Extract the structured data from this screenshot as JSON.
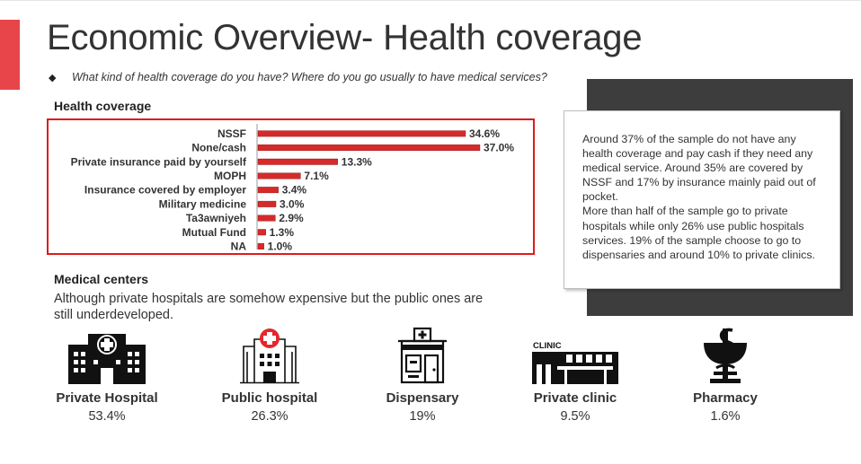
{
  "header": {
    "title": "Economic Overview- Health coverage",
    "bullet": "◆",
    "question": "What kind of health coverage do you have? Where do you go usually to have medical services?"
  },
  "health_coverage": {
    "heading": "Health coverage"
  },
  "chart_data": {
    "type": "bar",
    "orientation": "horizontal",
    "categories": [
      "NSSF",
      "None/cash",
      "Private insurance paid by yourself",
      "MOPH",
      "Insurance covered by employer",
      "Military medicine",
      "Ta3awniyeh",
      "Mutual Fund",
      "NA"
    ],
    "values": [
      34.6,
      37.0,
      13.3,
      7.1,
      3.4,
      3.0,
      2.9,
      1.3,
      1.0
    ],
    "value_labels": [
      "34.6%",
      "37.0%",
      "13.3%",
      "7.1%",
      "3.4%",
      "3.0%",
      "2.9%",
      "1.3%",
      "1.0%"
    ],
    "unit": "%",
    "bar_color": "#d62a2a",
    "border_color": "#e11b1b",
    "grid": false,
    "legend": "none"
  },
  "note": {
    "paragraphs": [
      "Around 37% of the sample do not have any health coverage and pay cash if they need any medical service. Around 35% are covered by NSSF and 17% by insurance mainly paid out of pocket.",
      "More than half of the sample go to private hospitals while only 26% use public hospitals services. 19% of the sample choose to go to dispensaries and around 10% to private clinics."
    ]
  },
  "medical_centers": {
    "heading": "Medical centers",
    "description": "Although private hospitals are somehow expensive but the public ones are still underdeveloped.",
    "items": [
      {
        "label": "Private Hospital",
        "value": "53.4%",
        "icon": "private-hospital-icon"
      },
      {
        "label": "Public hospital",
        "value": "26.3%",
        "icon": "public-hospital-icon"
      },
      {
        "label": "Dispensary",
        "value": "19%",
        "icon": "dispensary-icon"
      },
      {
        "label": "Private clinic",
        "value": "9.5%",
        "icon": "private-clinic-icon",
        "icon_text": "CLINIC"
      },
      {
        "label": "Pharmacy",
        "value": "1.6%",
        "icon": "pharmacy-icon"
      }
    ]
  },
  "colors": {
    "accent": "#e8454a",
    "panel": "#3d3d3d",
    "text": "#333333"
  }
}
